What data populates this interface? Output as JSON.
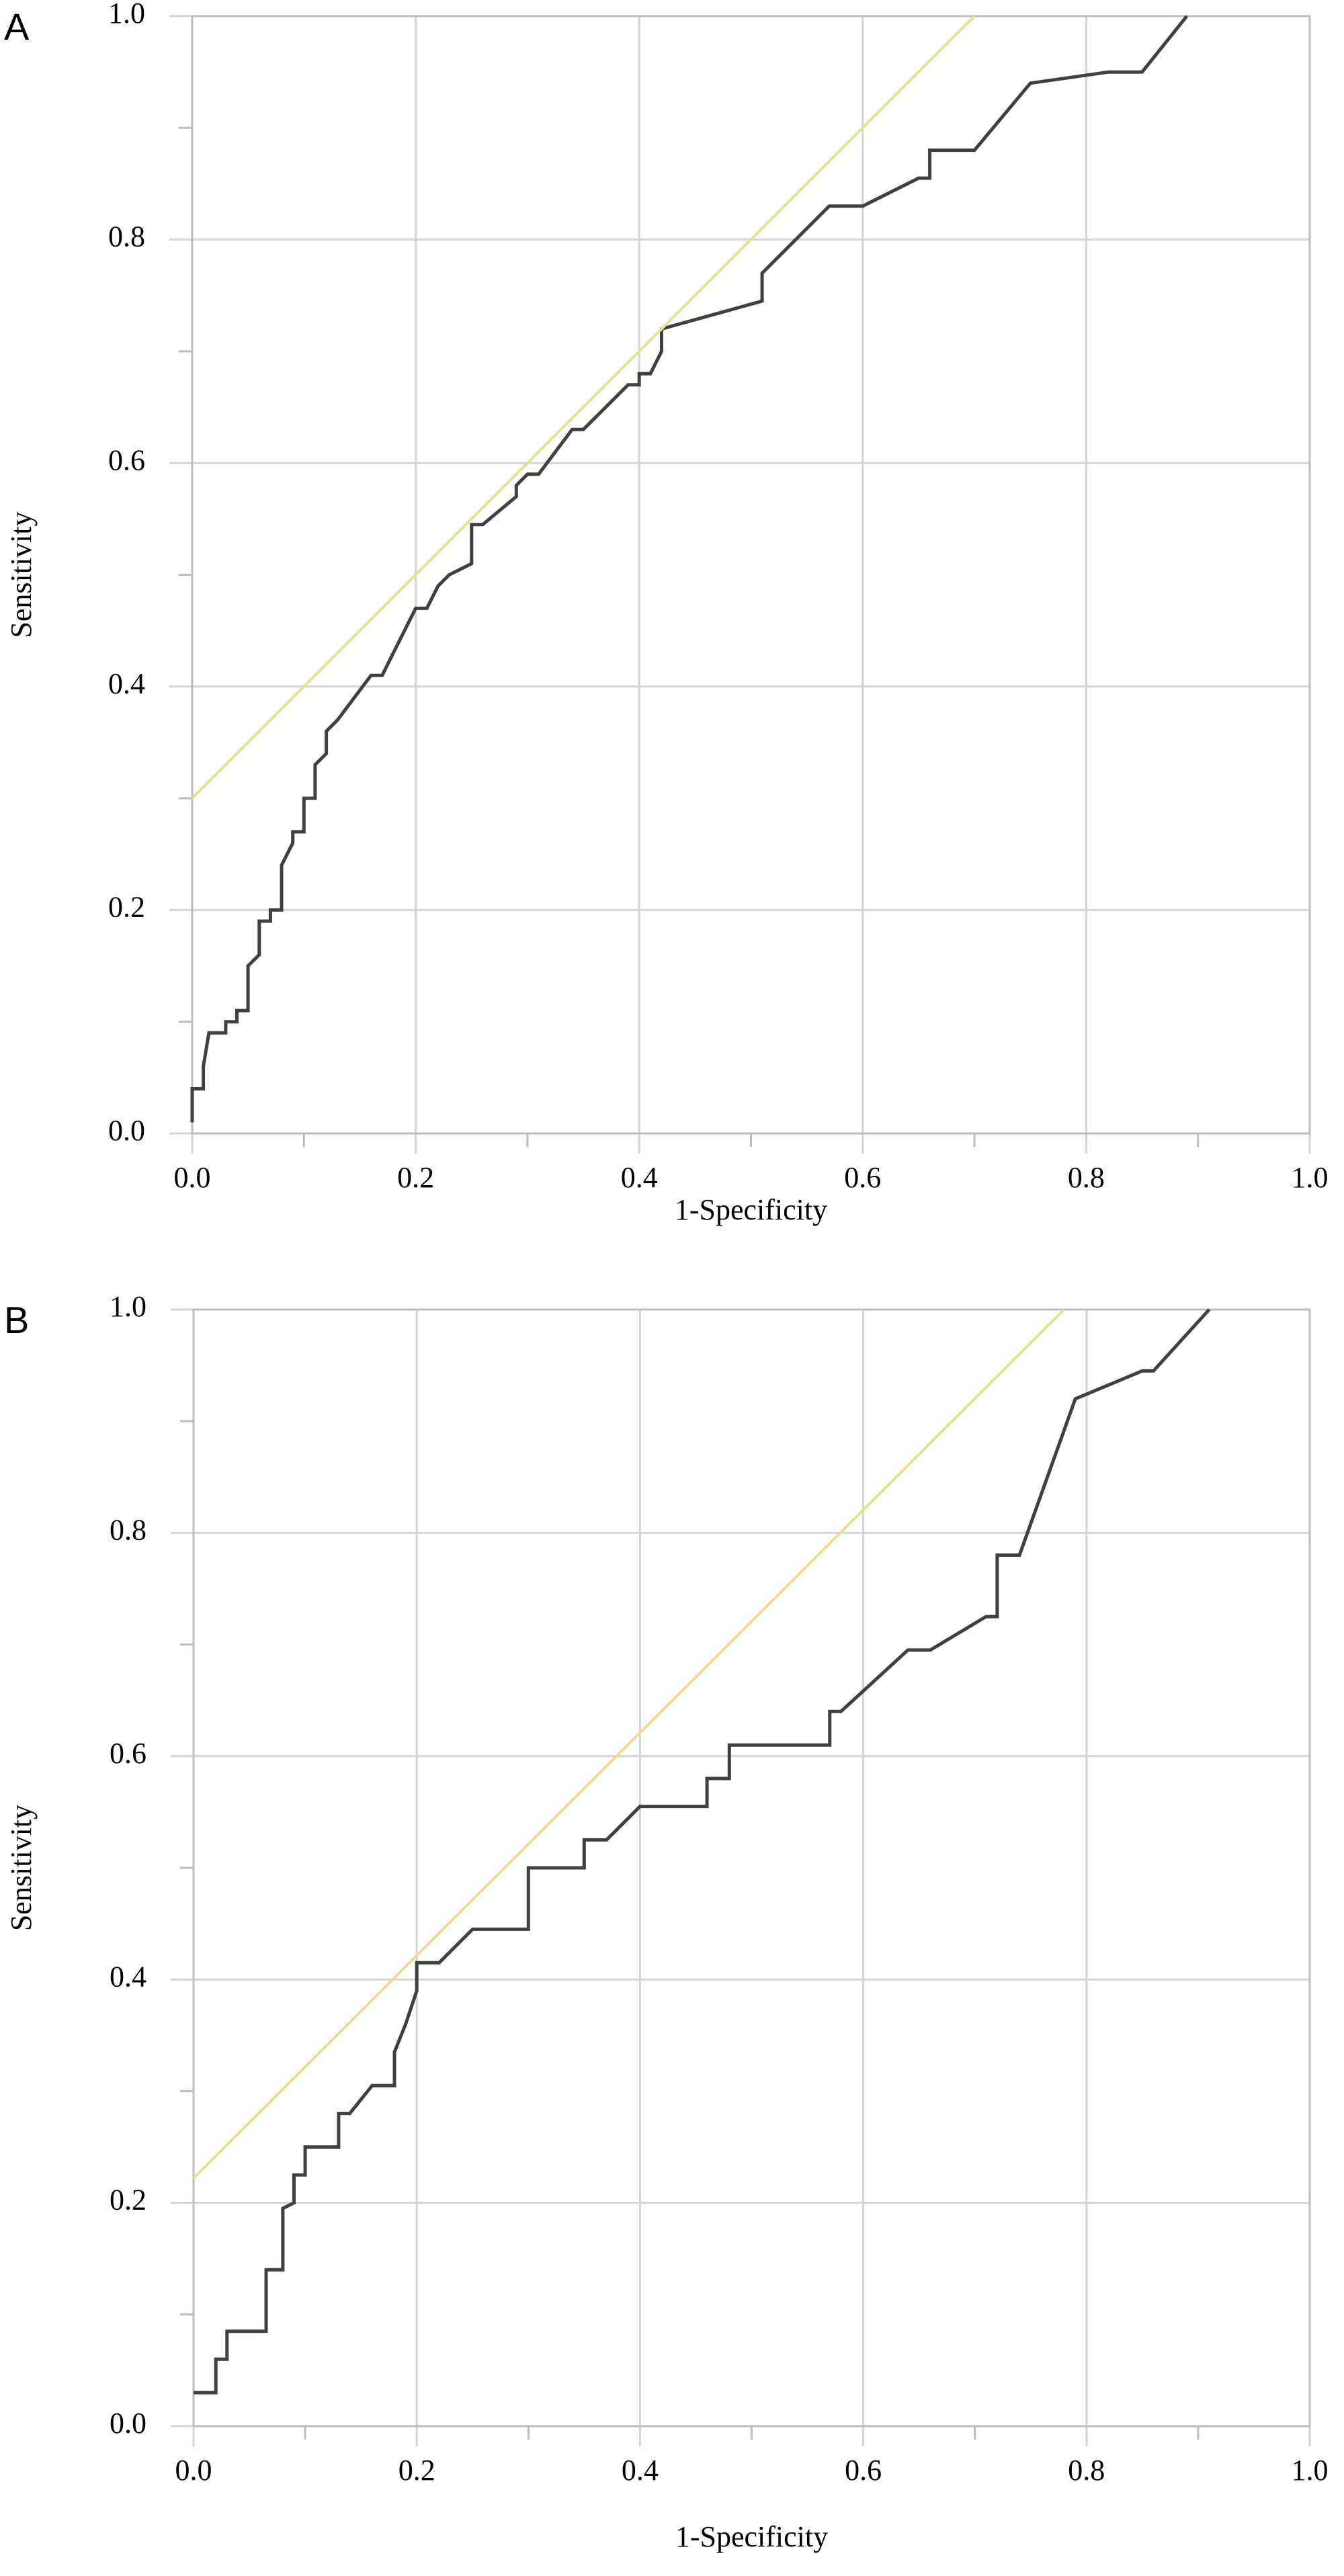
{
  "chart_data": [
    {
      "type": "line",
      "panel_label": "A",
      "xlabel": "1-Specificity",
      "ylabel": "Sensitivity",
      "xlim": [
        0,
        1
      ],
      "ylim": [
        0,
        1
      ],
      "xticks": [
        {
          "value": 0,
          "label": "0.0"
        },
        0.2,
        0.4,
        0.6,
        0.8,
        {
          "value": 1,
          "label": "1.0"
        }
      ],
      "yticks": [
        {
          "value": 0,
          "label": "0.0"
        },
        0.2,
        0.4,
        0.6,
        0.8,
        {
          "value": 1,
          "label": "1.0"
        }
      ],
      "xminorticks": [
        0.1,
        0.3,
        0.5,
        0.7,
        0.9
      ],
      "yminorticks": [
        0.1,
        0.3,
        0.5,
        0.7,
        0.9
      ],
      "grid": true,
      "series": [
        {
          "color": "#404040",
          "x": [
            0,
            0,
            0.01,
            0.01,
            0.015,
            0.03,
            0.03,
            0.04,
            0.04,
            0.05,
            0.05,
            0.06,
            0.06,
            0.07,
            0.07,
            0.08,
            0.08,
            0.09,
            0.09,
            0.1,
            0.1,
            0.11,
            0.11,
            0.12,
            0.12,
            0.13,
            0.16,
            0.17,
            0.18,
            0.2,
            0.21,
            0.22,
            0.23,
            0.25,
            0.25,
            0.26,
            0.29,
            0.29,
            0.3,
            0.31,
            0.34,
            0.35,
            0.36,
            0.39,
            0.4,
            0.4,
            0.41,
            0.42,
            0.42,
            0.51,
            0.51,
            0.52,
            0.57,
            0.6,
            0.65,
            0.66,
            0.66,
            0.7,
            0.75,
            0.82,
            0.85,
            0.89
          ],
          "values": [
            0.01,
            0.04,
            0.04,
            0.06,
            0.09,
            0.09,
            0.1,
            0.1,
            0.11,
            0.11,
            0.15,
            0.16,
            0.19,
            0.19,
            0.2,
            0.2,
            0.24,
            0.26,
            0.27,
            0.27,
            0.3,
            0.3,
            0.33,
            0.34,
            0.36,
            0.37,
            0.41,
            0.41,
            0.43,
            0.47,
            0.47,
            0.49,
            0.5,
            0.51,
            0.545,
            0.545,
            0.57,
            0.58,
            0.59,
            0.59,
            0.63,
            0.63,
            0.64,
            0.67,
            0.67,
            0.68,
            0.68,
            0.7,
            0.72,
            0.745,
            0.77,
            0.78,
            0.83,
            0.83,
            0.855,
            0.855,
            0.88,
            0.88,
            0.94,
            0.95,
            0.95,
            1
          ]
        },
        {
          "color": "#e8e08a",
          "x": [
            0,
            0.7
          ],
          "values": [
            0.3,
            1
          ]
        }
      ]
    },
    {
      "type": "line",
      "panel_label": "B",
      "xlabel": "1-Specificity",
      "ylabel": "Sensitivity",
      "xlim": [
        0,
        1
      ],
      "ylim": [
        0,
        1
      ],
      "xticks": [
        {
          "value": 0,
          "label": "0.0"
        },
        0.2,
        0.4,
        0.6,
        0.8,
        {
          "value": 1,
          "label": "1.0"
        }
      ],
      "yticks": [
        {
          "value": 0,
          "label": "0.0"
        },
        0.2,
        0.4,
        0.6,
        0.8,
        {
          "value": 1,
          "label": "1.0"
        }
      ],
      "xminorticks": [
        0.1,
        0.3,
        0.5,
        0.7,
        0.9
      ],
      "yminorticks": [
        0.1,
        0.3,
        0.5,
        0.7,
        0.9
      ],
      "grid": true,
      "series": [
        {
          "color": "#404040",
          "x": [
            0,
            0.02,
            0.02,
            0.03,
            0.03,
            0.065,
            0.065,
            0.08,
            0.08,
            0.09,
            0.09,
            0.1,
            0.1,
            0.13,
            0.13,
            0.14,
            0.16,
            0.18,
            0.18,
            0.19,
            0.2,
            0.2,
            0.22,
            0.25,
            0.3,
            0.3,
            0.35,
            0.35,
            0.37,
            0.4,
            0.46,
            0.46,
            0.48,
            0.48,
            0.57,
            0.57,
            0.58,
            0.64,
            0.66,
            0.71,
            0.72,
            0.72,
            0.74,
            0.79,
            0.85,
            0.86,
            0.91
          ],
          "values": [
            0.03,
            0.03,
            0.06,
            0.06,
            0.085,
            0.085,
            0.14,
            0.14,
            0.195,
            0.2,
            0.225,
            0.225,
            0.25,
            0.25,
            0.28,
            0.28,
            0.305,
            0.305,
            0.335,
            0.36,
            0.39,
            0.415,
            0.415,
            0.445,
            0.445,
            0.5,
            0.5,
            0.525,
            0.525,
            0.555,
            0.555,
            0.58,
            0.58,
            0.61,
            0.61,
            0.64,
            0.64,
            0.695,
            0.695,
            0.725,
            0.725,
            0.78,
            0.78,
            0.92,
            0.945,
            0.945,
            1
          ]
        },
        {
          "color": "#e8e08a",
          "x": [
            0,
            0.78
          ],
          "values": [
            0.222,
            1
          ]
        }
      ]
    }
  ]
}
